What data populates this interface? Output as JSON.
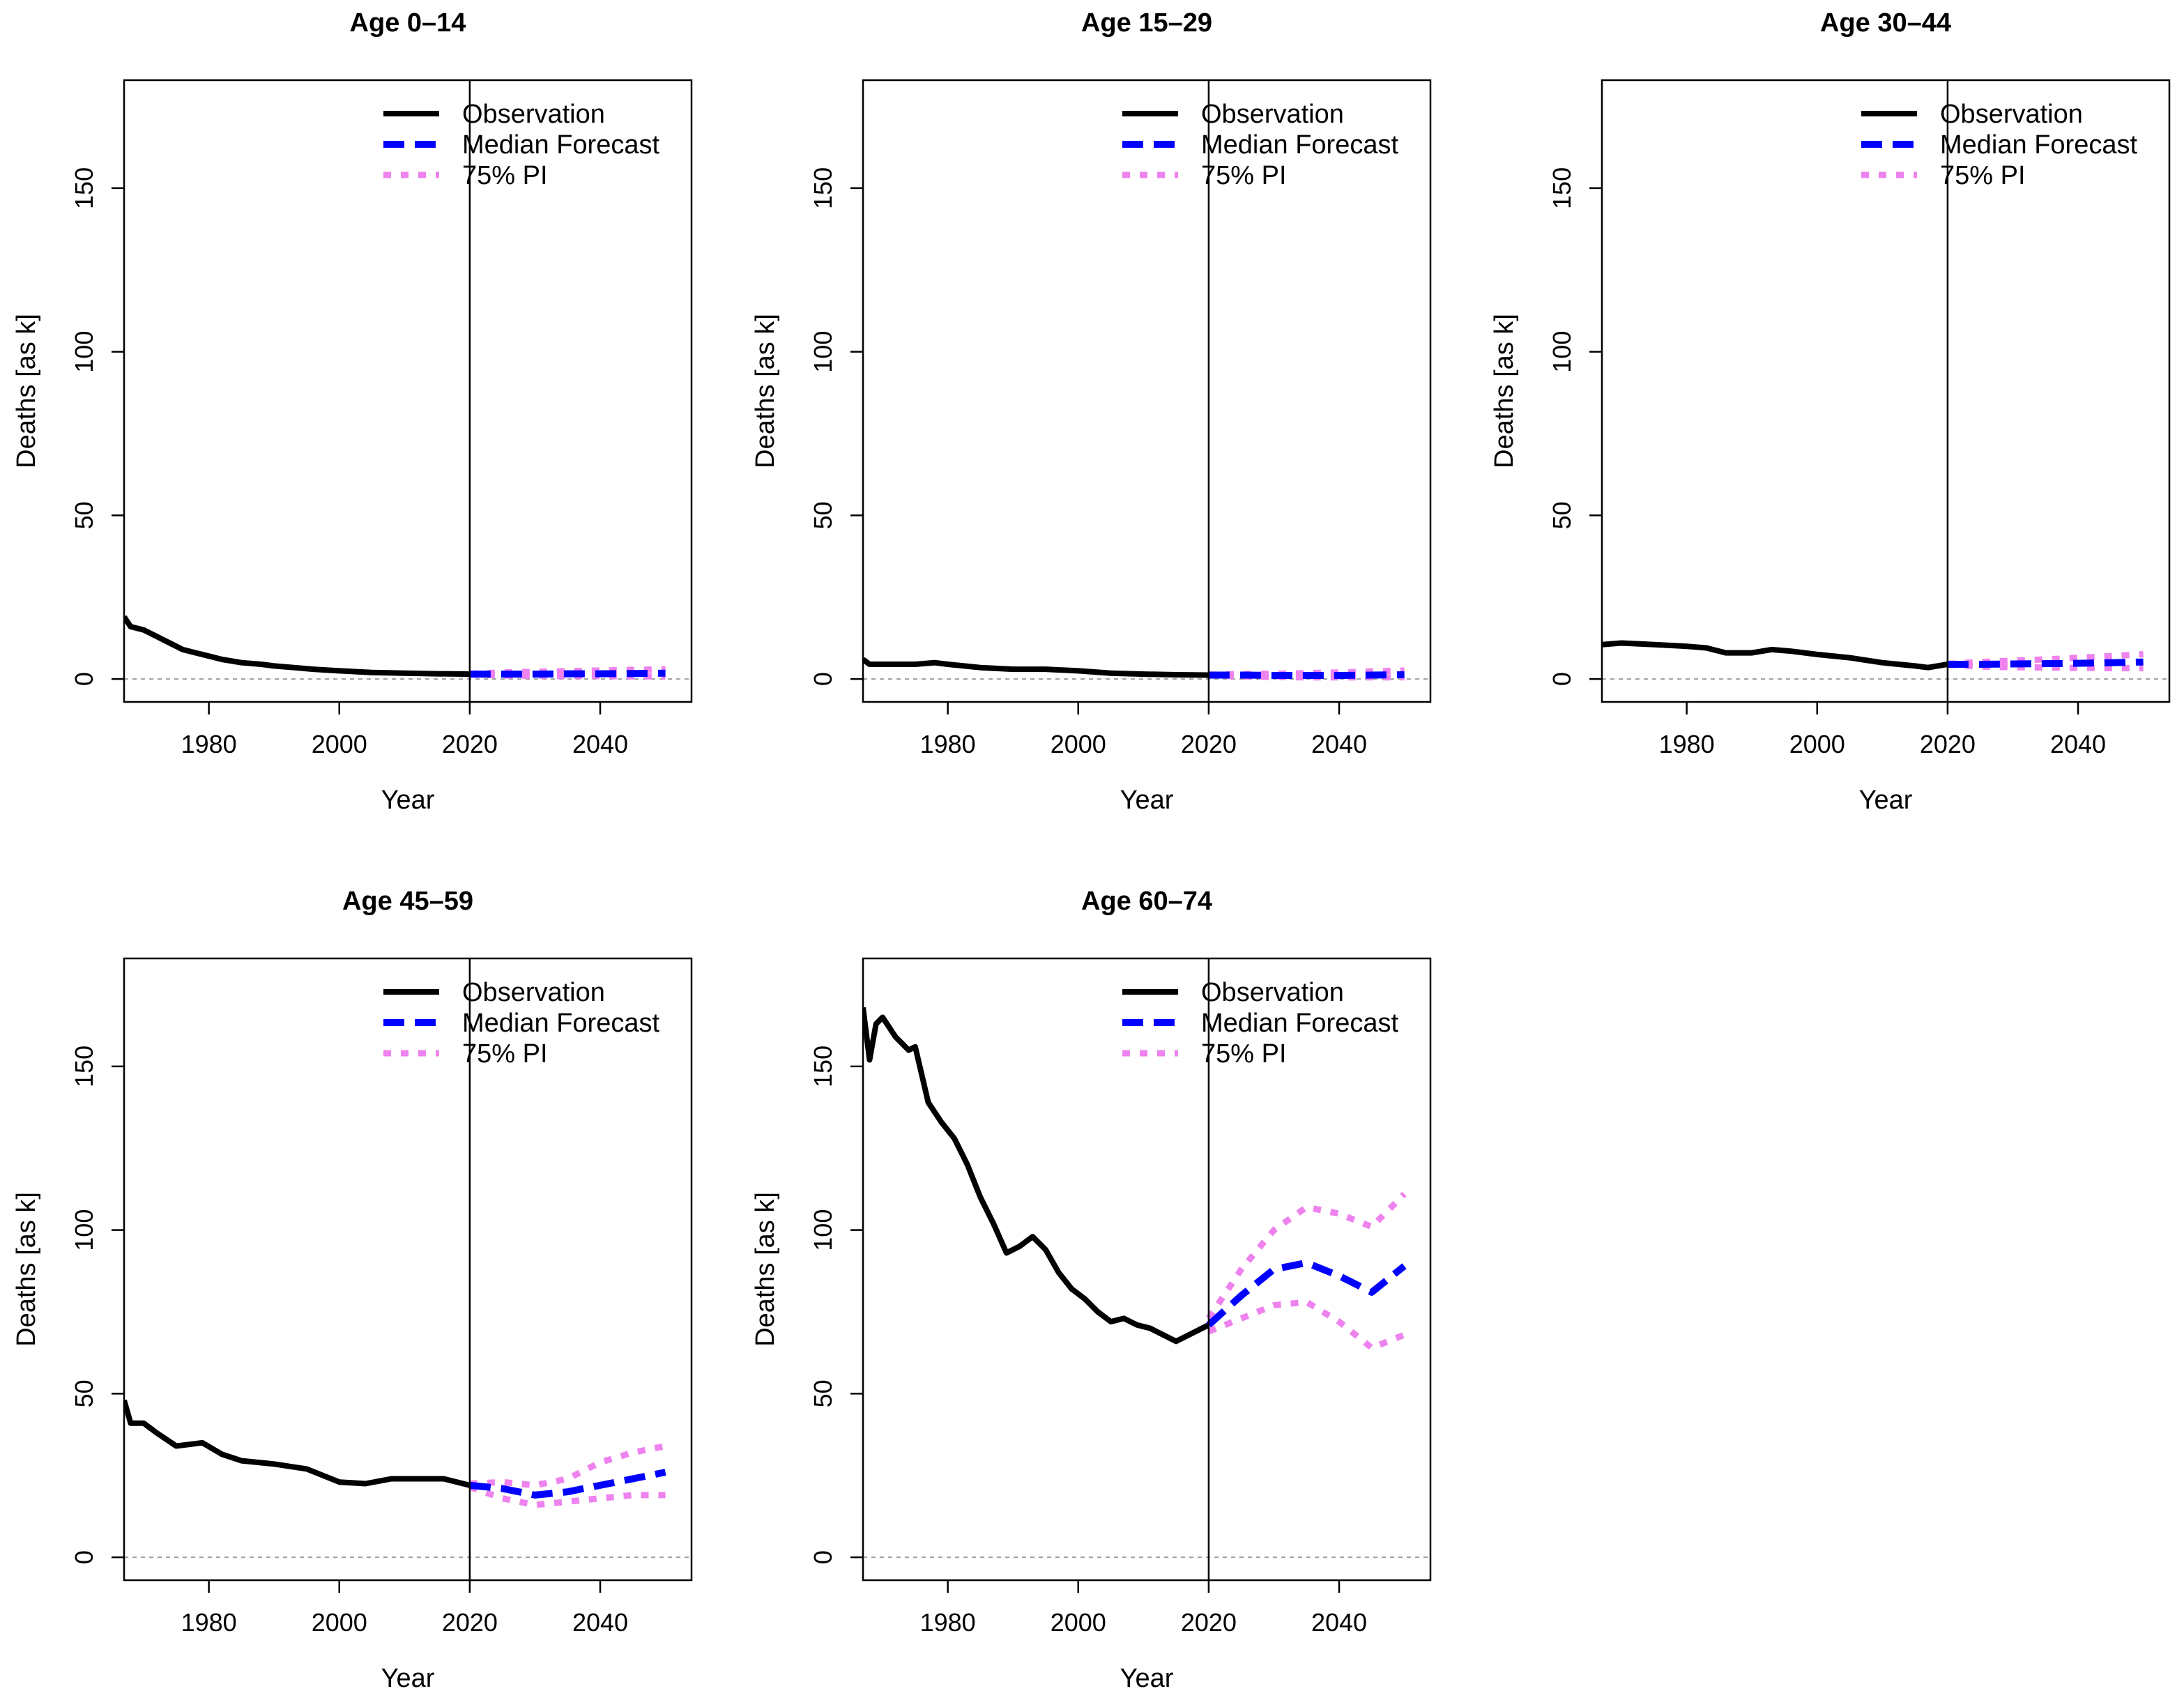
{
  "figure": {
    "colors": {
      "observation": "#000000",
      "median": "#0000ff",
      "pi": "#ee82ee",
      "zero_line": "#9e9e9e",
      "divider": "#000000"
    }
  },
  "chart_data": [
    {
      "type": "line",
      "title": "Age 0–14",
      "xlabel": "Year",
      "ylabel": "Deaths [as k]",
      "xlim": [
        1967,
        2054
      ],
      "ylim": [
        -7,
        183
      ],
      "xticks": [
        "1980",
        "2000",
        "2020",
        "2040"
      ],
      "yticks": [
        "0",
        "50",
        "100",
        "150"
      ],
      "forecast_start": 2020,
      "legend": {
        "position": "top-right",
        "entries": [
          "Observation",
          "Median Forecast",
          "75% PI"
        ]
      },
      "series": [
        {
          "name": "Observation",
          "x": [
            1967,
            1968,
            1970,
            1972,
            1974,
            1976,
            1978,
            1980,
            1982,
            1985,
            1988,
            1990,
            1993,
            1996,
            2000,
            2005,
            2010,
            2015,
            2020
          ],
          "values": [
            19,
            16,
            15,
            13,
            11,
            9,
            8,
            7,
            6,
            5,
            4.5,
            4,
            3.5,
            3,
            2.5,
            2,
            1.8,
            1.6,
            1.5
          ]
        },
        {
          "name": "Median Forecast",
          "x": [
            2020,
            2025,
            2030,
            2035,
            2040,
            2045,
            2050
          ],
          "values": [
            1.5,
            1.5,
            1.5,
            1.6,
            1.6,
            1.7,
            1.8
          ]
        },
        {
          "name": "75% PI upper",
          "x": [
            2020,
            2025,
            2030,
            2035,
            2040,
            2045,
            2050
          ],
          "values": [
            1.6,
            2.0,
            2.2,
            2.4,
            2.6,
            2.8,
            3.0
          ]
        },
        {
          "name": "75% PI lower",
          "x": [
            2020,
            2025,
            2030,
            2035,
            2040,
            2045,
            2050
          ],
          "values": [
            1.4,
            1.1,
            1.0,
            0.9,
            0.9,
            0.8,
            0.8
          ]
        }
      ]
    },
    {
      "type": "line",
      "title": "Age 15–29",
      "xlabel": "Year",
      "ylabel": "Deaths [as k]",
      "xlim": [
        1967,
        2054
      ],
      "ylim": [
        -7,
        183
      ],
      "xticks": [
        "1980",
        "2000",
        "2020",
        "2040"
      ],
      "yticks": [
        "0",
        "50",
        "100",
        "150"
      ],
      "forecast_start": 2020,
      "legend": {
        "position": "top-right",
        "entries": [
          "Observation",
          "Median Forecast",
          "75% PI"
        ]
      },
      "series": [
        {
          "name": "Observation",
          "x": [
            1967,
            1968,
            1970,
            1975,
            1978,
            1980,
            1985,
            1990,
            1995,
            2000,
            2005,
            2010,
            2015,
            2020
          ],
          "values": [
            6,
            4.5,
            4.5,
            4.5,
            5,
            4.5,
            3.5,
            3,
            3,
            2.5,
            1.8,
            1.5,
            1.3,
            1.2
          ]
        },
        {
          "name": "Median Forecast",
          "x": [
            2020,
            2025,
            2030,
            2035,
            2040,
            2045,
            2050
          ],
          "values": [
            1.2,
            1.2,
            1.1,
            1.1,
            1.1,
            1.2,
            1.3
          ]
        },
        {
          "name": "75% PI upper",
          "x": [
            2020,
            2025,
            2030,
            2035,
            2040,
            2045,
            2050
          ],
          "values": [
            1.3,
            1.5,
            1.6,
            1.8,
            2.0,
            2.3,
            2.6
          ]
        },
        {
          "name": "75% PI lower",
          "x": [
            2020,
            2025,
            2030,
            2035,
            2040,
            2045,
            2050
          ],
          "values": [
            1.1,
            0.8,
            0.6,
            0.5,
            0.5,
            0.5,
            0.5
          ]
        }
      ]
    },
    {
      "type": "line",
      "title": "Age 30–44",
      "xlabel": "Year",
      "ylabel": "Deaths [as k]",
      "xlim": [
        1967,
        2054
      ],
      "ylim": [
        -7,
        183
      ],
      "xticks": [
        "1980",
        "2000",
        "2020",
        "2040"
      ],
      "yticks": [
        "0",
        "50",
        "100",
        "150"
      ],
      "forecast_start": 2020,
      "legend": {
        "position": "top-right",
        "entries": [
          "Observation",
          "Median Forecast",
          "75% PI"
        ]
      },
      "series": [
        {
          "name": "Observation",
          "x": [
            1967,
            1970,
            1975,
            1980,
            1983,
            1986,
            1990,
            1993,
            1996,
            2000,
            2005,
            2010,
            2015,
            2017,
            2020
          ],
          "values": [
            10.5,
            11,
            10.5,
            10,
            9.5,
            8,
            8,
            9,
            8.5,
            7.5,
            6.5,
            5,
            4,
            3.5,
            4.5
          ]
        },
        {
          "name": "Median Forecast",
          "x": [
            2020,
            2025,
            2030,
            2035,
            2040,
            2045,
            2050
          ],
          "values": [
            4.5,
            4.5,
            4.6,
            4.7,
            4.8,
            5.0,
            5.2
          ]
        },
        {
          "name": "75% PI upper",
          "x": [
            2020,
            2025,
            2030,
            2035,
            2040,
            2045,
            2050
          ],
          "values": [
            4.6,
            5.2,
            5.6,
            6.0,
            6.5,
            7.0,
            7.6
          ]
        },
        {
          "name": "75% PI lower",
          "x": [
            2020,
            2025,
            2030,
            2035,
            2040,
            2045,
            2050
          ],
          "values": [
            4.4,
            3.8,
            3.6,
            3.5,
            3.4,
            3.3,
            3.3
          ]
        }
      ]
    },
    {
      "type": "line",
      "title": "Age 45–59",
      "xlabel": "Year",
      "ylabel": "Deaths [as k]",
      "xlim": [
        1967,
        2054
      ],
      "ylim": [
        -7,
        183
      ],
      "xticks": [
        "1980",
        "2000",
        "2020",
        "2040"
      ],
      "yticks": [
        "0",
        "50",
        "100",
        "150"
      ],
      "forecast_start": 2020,
      "legend": {
        "position": "top-right",
        "entries": [
          "Observation",
          "Median Forecast",
          "75% PI"
        ]
      },
      "series": [
        {
          "name": "Observation",
          "x": [
            1967,
            1968,
            1970,
            1972,
            1975,
            1977,
            1979,
            1982,
            1985,
            1990,
            1995,
            2000,
            2004,
            2008,
            2012,
            2016,
            2020
          ],
          "values": [
            48,
            41,
            41,
            38,
            34,
            34.5,
            35,
            31.5,
            29.5,
            28.5,
            27,
            23,
            22.5,
            24,
            24,
            24,
            22
          ]
        },
        {
          "name": "Median Forecast",
          "x": [
            2020,
            2025,
            2030,
            2035,
            2040,
            2045,
            2050
          ],
          "values": [
            22,
            21,
            19,
            20,
            22,
            24,
            26
          ]
        },
        {
          "name": "75% PI upper",
          "x": [
            2020,
            2025,
            2030,
            2035,
            2040,
            2045,
            2050
          ],
          "values": [
            22.5,
            23,
            22,
            24,
            29,
            32,
            34
          ]
        },
        {
          "name": "75% PI lower",
          "x": [
            2020,
            2025,
            2030,
            2035,
            2040,
            2045,
            2050
          ],
          "values": [
            21.5,
            18,
            16,
            17,
            18,
            19,
            19
          ]
        }
      ]
    },
    {
      "type": "line",
      "title": "Age 60–74",
      "xlabel": "Year",
      "ylabel": "Deaths [as k]",
      "xlim": [
        1967,
        2054
      ],
      "ylim": [
        -7,
        183
      ],
      "xticks": [
        "1980",
        "2000",
        "2020",
        "2040"
      ],
      "yticks": [
        "0",
        "50",
        "100",
        "150"
      ],
      "forecast_start": 2020,
      "legend": {
        "position": "top-right",
        "entries": [
          "Observation",
          "Median Forecast",
          "75% PI"
        ]
      },
      "series": [
        {
          "name": "Observation",
          "x": [
            1967,
            1968,
            1969,
            1970,
            1972,
            1974,
            1975,
            1977,
            1979,
            1981,
            1983,
            1985,
            1987,
            1989,
            1991,
            1993,
            1995,
            1997,
            1999,
            2001,
            2003,
            2005,
            2007,
            2009,
            2011,
            2013,
            2015,
            2017,
            2019,
            2020
          ],
          "values": [
            168,
            152,
            163,
            165,
            159,
            155,
            156,
            139,
            133,
            128,
            120,
            110,
            102,
            93,
            95,
            98,
            94,
            87,
            82,
            79,
            75,
            72,
            73,
            71,
            70,
            68,
            66,
            68,
            70,
            71
          ]
        },
        {
          "name": "Median Forecast",
          "x": [
            2020,
            2025,
            2030,
            2035,
            2040,
            2045,
            2050
          ],
          "values": [
            71,
            80,
            88,
            90,
            86,
            81,
            89
          ]
        },
        {
          "name": "75% PI upper",
          "x": [
            2020,
            2025,
            2030,
            2035,
            2040,
            2045,
            2050
          ],
          "values": [
            73,
            88,
            100,
            107,
            105,
            101,
            111
          ]
        },
        {
          "name": "75% PI lower",
          "x": [
            2020,
            2025,
            2030,
            2035,
            2040,
            2045,
            2050
          ],
          "values": [
            69,
            73,
            77,
            78,
            72,
            64,
            68
          ]
        }
      ]
    }
  ]
}
